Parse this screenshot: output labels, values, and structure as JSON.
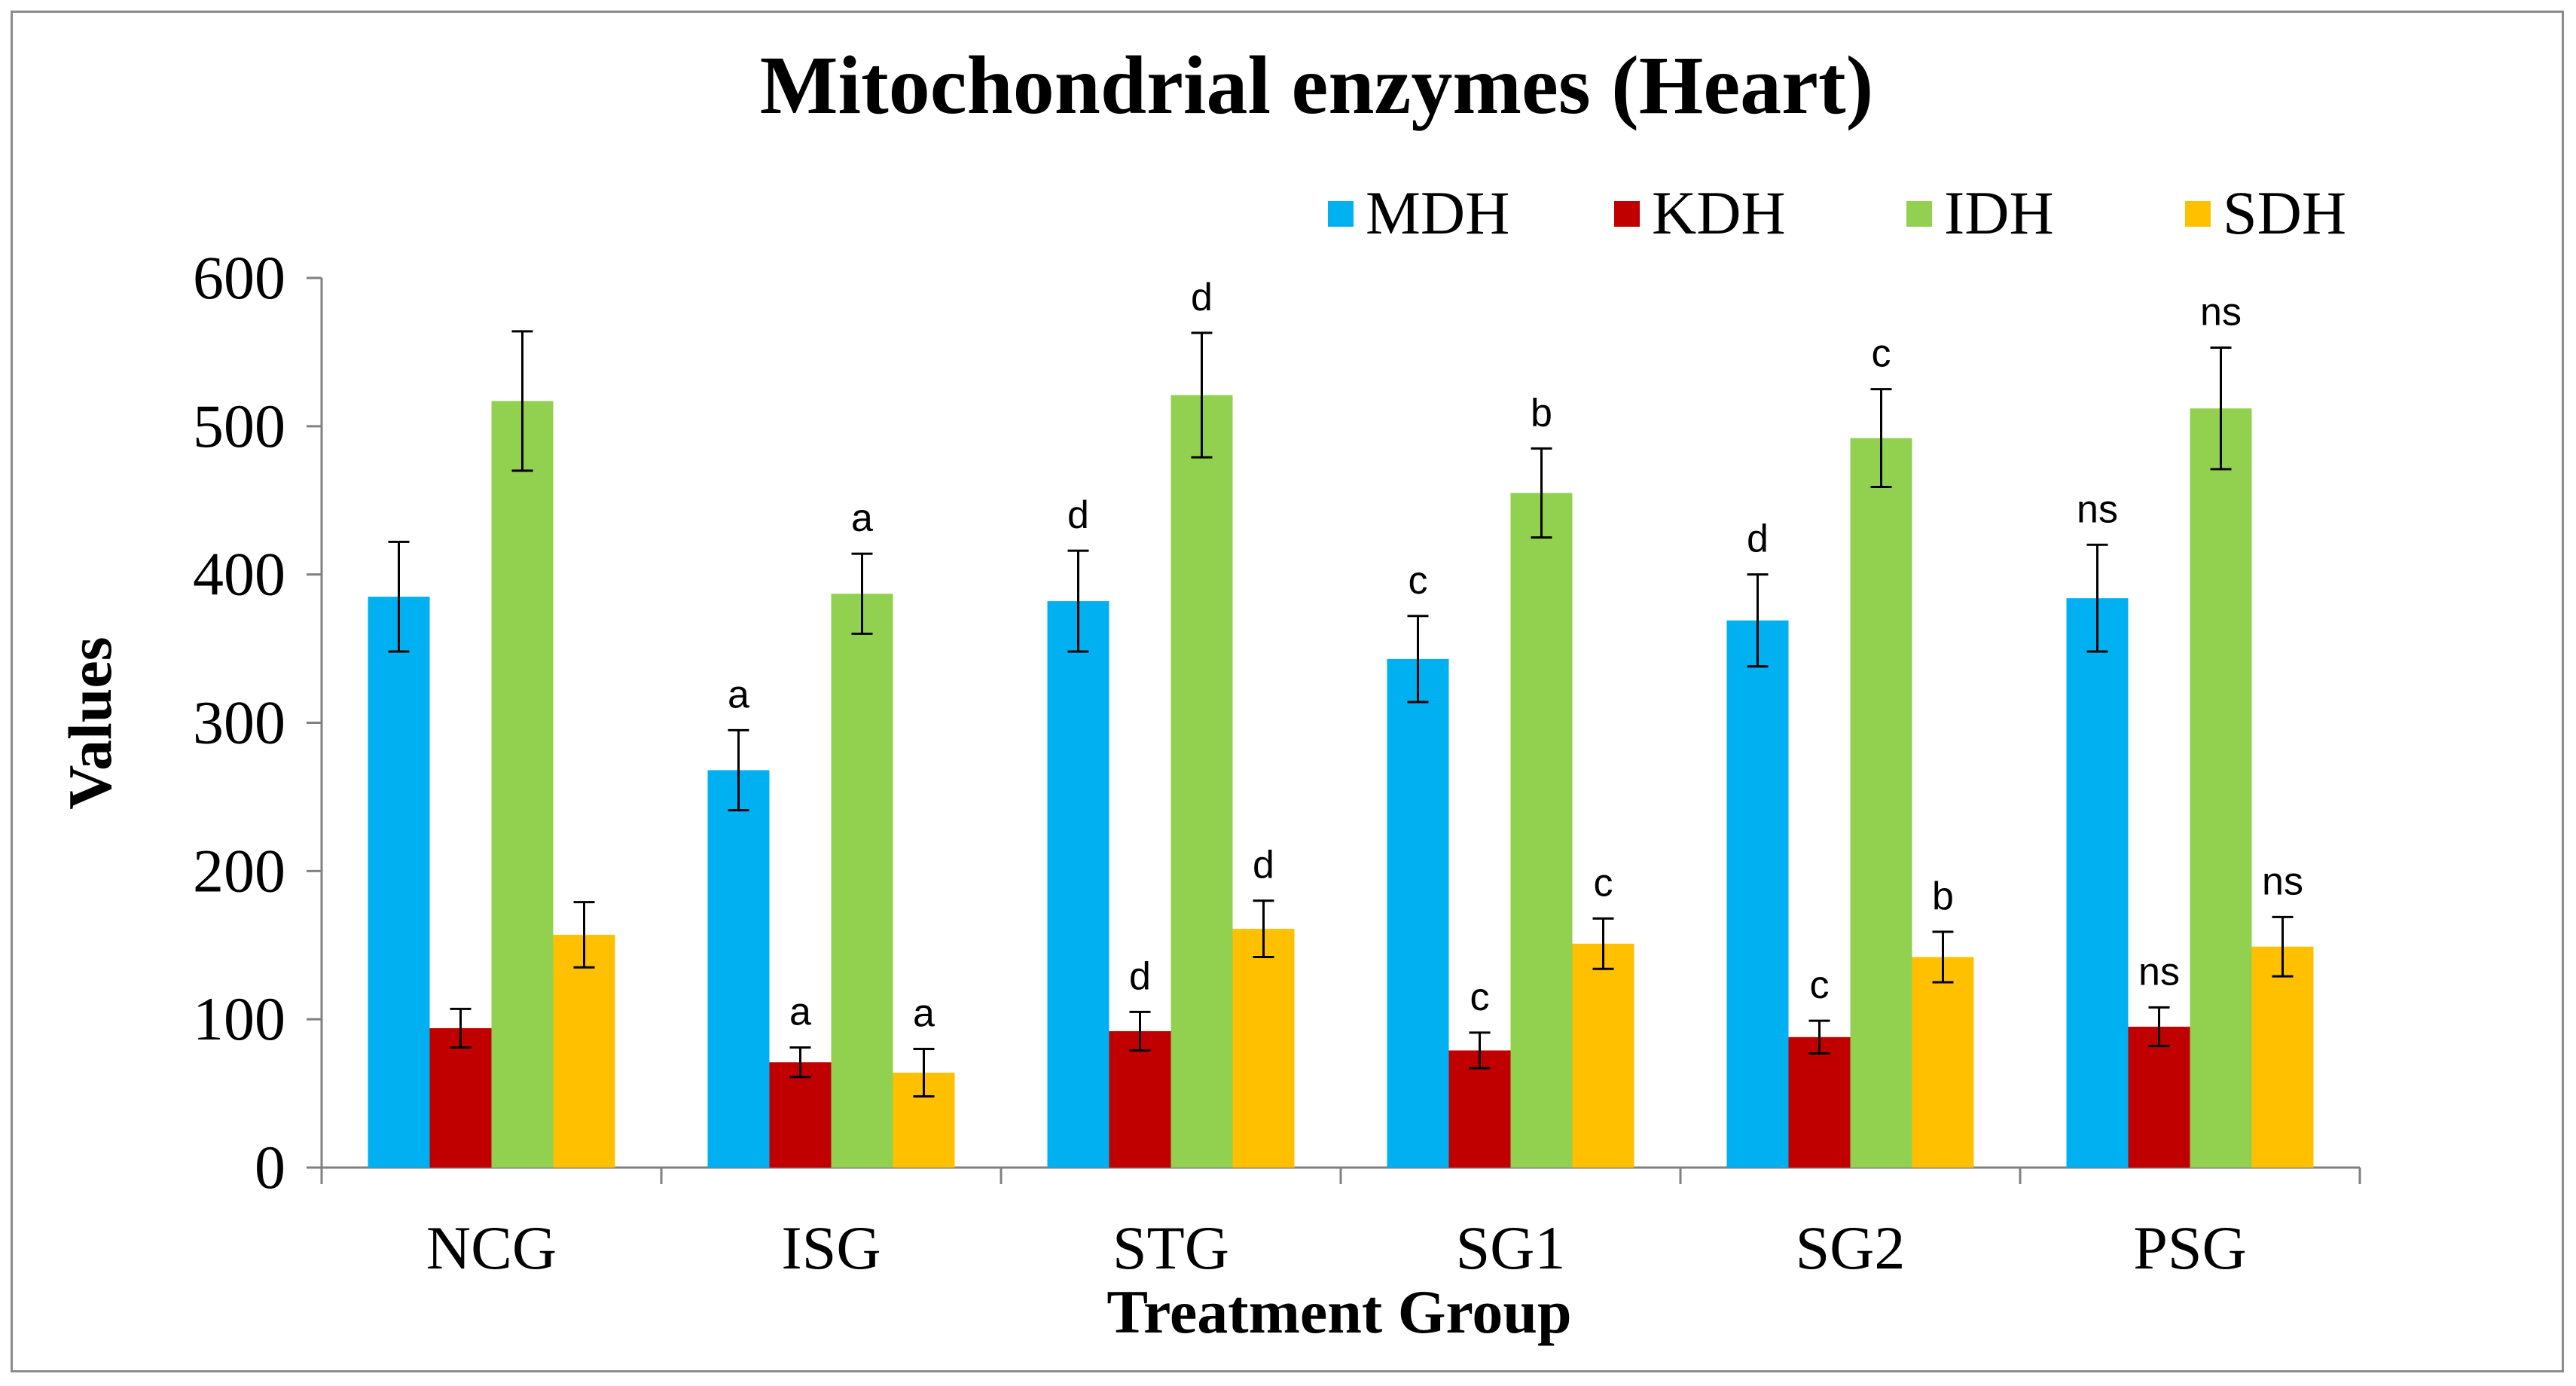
{
  "chart_data": {
    "type": "bar",
    "title": "Mitochondrial enzymes (Heart)",
    "xlabel": "Treatment Group",
    "ylabel": "Values",
    "ylim": [
      0,
      600
    ],
    "yticks": [
      "0",
      "100",
      "200",
      "300",
      "400",
      "500",
      "600"
    ],
    "grid": false,
    "legend_position": "top-right",
    "categories": [
      "NCG",
      "ISG",
      "STG",
      "SG1",
      "SG2",
      "PSG"
    ],
    "series": [
      {
        "name": "MDH",
        "color": "#00b0f0",
        "values": [
          385,
          268,
          382,
          343,
          369,
          384
        ],
        "errors": [
          37,
          27,
          34,
          29,
          31,
          36
        ],
        "labels": [
          "",
          "a",
          "d",
          "c",
          "d",
          "ns"
        ]
      },
      {
        "name": "KDH",
        "color": "#c00000",
        "values": [
          94,
          71,
          92,
          79,
          88,
          95
        ],
        "errors": [
          13,
          10,
          13,
          12,
          11,
          13
        ],
        "labels": [
          "",
          "a",
          "d",
          "c",
          "c",
          "ns"
        ]
      },
      {
        "name": "IDH",
        "color": "#92d050",
        "values": [
          517,
          387,
          521,
          455,
          492,
          512
        ],
        "errors": [
          47,
          27,
          42,
          30,
          33,
          41
        ],
        "labels": [
          "",
          "a",
          "d",
          "b",
          "c",
          "ns"
        ]
      },
      {
        "name": "SDH",
        "color": "#ffc000",
        "values": [
          157,
          64,
          161,
          151,
          142,
          149
        ],
        "errors": [
          22,
          16,
          19,
          17,
          17,
          20
        ],
        "labels": [
          "",
          "a",
          "d",
          "c",
          "b",
          "ns"
        ]
      }
    ]
  }
}
